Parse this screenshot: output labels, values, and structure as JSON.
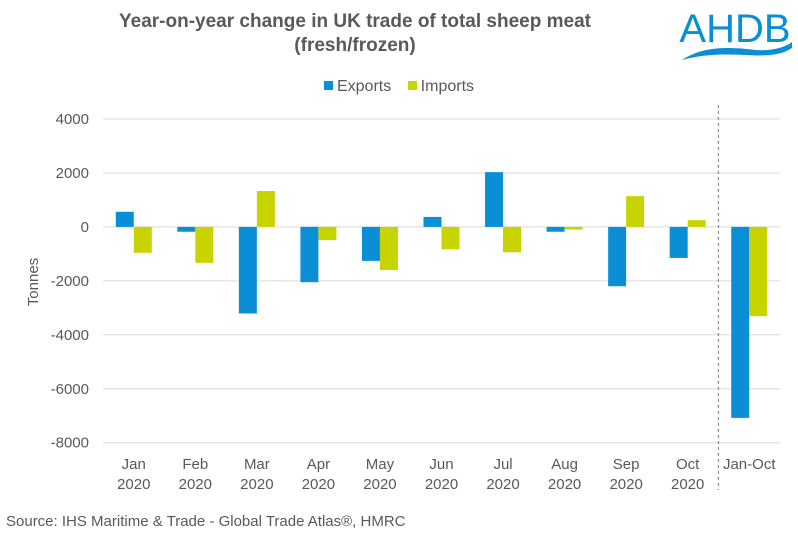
{
  "logo": {
    "text": "AHDB",
    "color": "#0a8fd6"
  },
  "source": "Source: IHS Maritime & Trade - Global Trade Atlas®, HMRC",
  "chart_data": {
    "type": "bar",
    "title_line1": "Year-on-year change in UK trade of total sheep meat",
    "title_line2": "(fresh/frozen)",
    "xlabel": "",
    "ylabel": "Tonnes",
    "ylim": [
      -8000,
      4000
    ],
    "yticks": [
      4000,
      2000,
      0,
      -2000,
      -4000,
      -6000,
      -8000
    ],
    "grid": true,
    "legend_position": "top-center",
    "categories": [
      [
        "Jan",
        "2020"
      ],
      [
        "Feb",
        "2020"
      ],
      [
        "Mar",
        "2020"
      ],
      [
        "Apr",
        "2020"
      ],
      [
        "May",
        "2020"
      ],
      [
        "Jun",
        "2020"
      ],
      [
        "Jul",
        "2020"
      ],
      [
        "Aug",
        "2020"
      ],
      [
        "Sep",
        "2020"
      ],
      [
        "Oct",
        "2020"
      ],
      [
        "Jan-Oct",
        ""
      ]
    ],
    "separator_before_category": 10,
    "series": [
      {
        "name": "Exports",
        "color": "#0a8fd6",
        "values": [
          560,
          -180,
          -3210,
          -2050,
          -1260,
          370,
          2030,
          -180,
          -2200,
          -1150,
          -7080
        ]
      },
      {
        "name": "Imports",
        "color": "#c8d400",
        "values": [
          -960,
          -1330,
          1330,
          -490,
          -1600,
          -830,
          -940,
          -100,
          1140,
          250,
          -3310
        ]
      }
    ]
  }
}
